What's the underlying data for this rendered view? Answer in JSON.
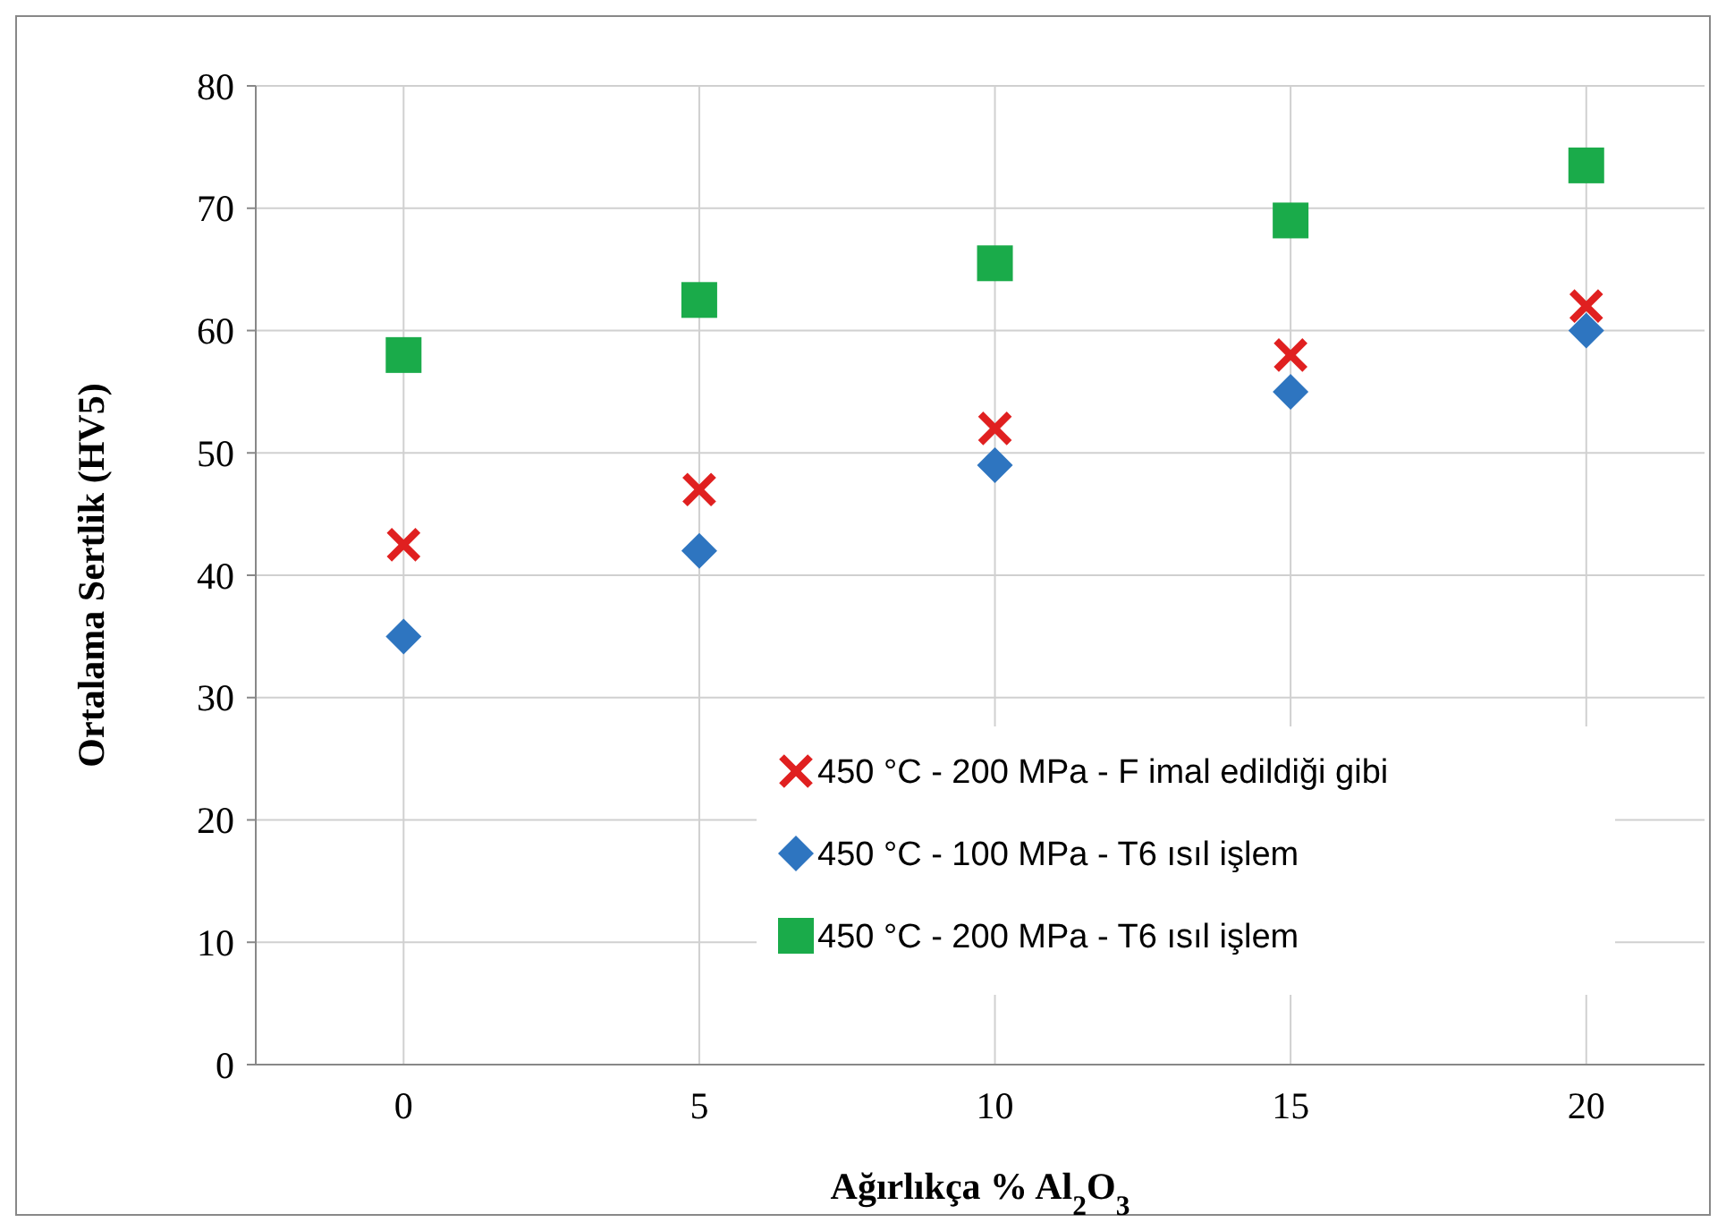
{
  "chart_data": {
    "type": "scatter",
    "xlabel": "Ağırlıkça % Al$_{2}$O$_{3}$",
    "ylabel": "Ortalama Sertlik (HV5)",
    "x": [
      0,
      5,
      10,
      15,
      20
    ],
    "xlim": [
      -2.5,
      22
    ],
    "xticks": [
      0,
      5,
      10,
      15,
      20
    ],
    "ylim": [
      0,
      80
    ],
    "yticks": [
      0,
      10,
      20,
      30,
      40,
      50,
      60,
      70,
      80
    ],
    "grid": true,
    "legend": "bottom right",
    "series": [
      {
        "name": "450 °C - 200 MPa - F imal edildiği gibi",
        "color": "#e02020",
        "marker": "cross",
        "values": [
          42.5,
          47,
          52,
          58,
          62
        ]
      },
      {
        "name": "450 °C - 100 MPa - T6 ısıl işlem",
        "color": "#2e75c0",
        "marker": "diamond",
        "values": [
          35,
          42,
          49,
          55,
          60
        ]
      },
      {
        "name": "450 °C - 200 MPa - T6 ısıl işlem",
        "color": "#1aab4a",
        "marker": "square",
        "values": [
          58,
          62.5,
          65.5,
          69,
          73.5
        ]
      }
    ]
  }
}
